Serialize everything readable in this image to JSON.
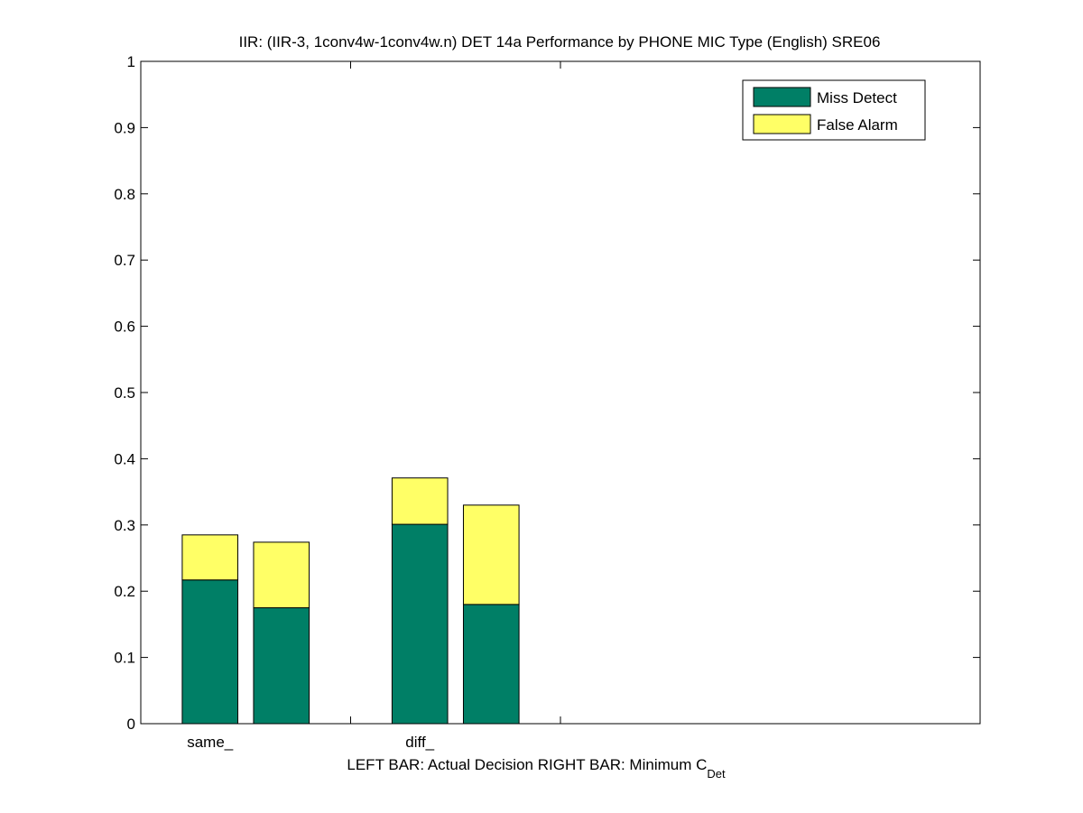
{
  "chart_data": {
    "type": "bar",
    "stacked": true,
    "title": "IIR: (IIR-3, 1conv4w-1conv4w.n) DET 14a Performance by PHONE MIC Type (English) SRE06",
    "xlabel_main": "LEFT BAR: Actual Decision     RIGHT BAR: Minimum C",
    "xlabel_sub": "Det",
    "ylim": [
      0,
      1
    ],
    "yticks": [
      0,
      0.1,
      0.2,
      0.3,
      0.4,
      0.5,
      0.6,
      0.7,
      0.8,
      0.9,
      1
    ],
    "ytick_labels": [
      "0",
      "0.1",
      "0.2",
      "0.3",
      "0.4",
      "0.5",
      "0.6",
      "0.7",
      "0.8",
      "0.9",
      "1"
    ],
    "xlim": [
      0.5,
      4.5
    ],
    "x_group_ticks": [
      1.5,
      2.5
    ],
    "categories": [
      "same_",
      "diff_"
    ],
    "category_x": [
      0.83,
      1.83
    ],
    "bars": [
      {
        "group": "same_",
        "bar": "Actual Decision",
        "x": 0.83,
        "miss": 0.217,
        "false_alarm": 0.068
      },
      {
        "group": "same_",
        "bar": "Minimum C_Det",
        "x": 1.17,
        "miss": 0.175,
        "false_alarm": 0.099
      },
      {
        "group": "diff_",
        "bar": "Actual Decision",
        "x": 1.83,
        "miss": 0.301,
        "false_alarm": 0.07
      },
      {
        "group": "diff_",
        "bar": "Minimum C_Det",
        "x": 2.17,
        "miss": 0.18,
        "false_alarm": 0.15
      }
    ],
    "bar_width": 0.265,
    "series": [
      {
        "name": "Miss Detect",
        "color": "#007f66"
      },
      {
        "name": "False Alarm",
        "color": "#ffff66"
      }
    ],
    "legend_position": "top-right",
    "grid": false
  }
}
